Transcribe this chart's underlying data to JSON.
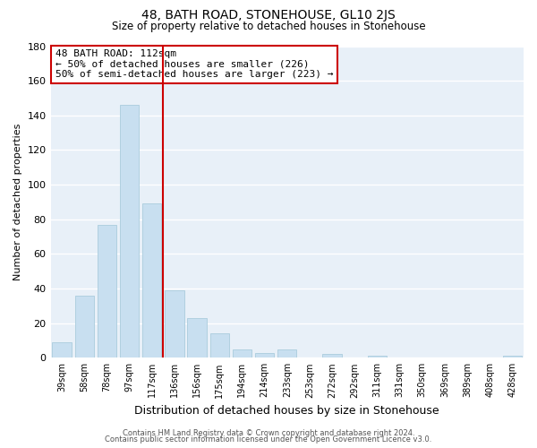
{
  "title": "48, BATH ROAD, STONEHOUSE, GL10 2JS",
  "subtitle": "Size of property relative to detached houses in Stonehouse",
  "xlabel": "Distribution of detached houses by size in Stonehouse",
  "ylabel": "Number of detached properties",
  "bar_labels": [
    "39sqm",
    "58sqm",
    "78sqm",
    "97sqm",
    "117sqm",
    "136sqm",
    "156sqm",
    "175sqm",
    "194sqm",
    "214sqm",
    "233sqm",
    "253sqm",
    "272sqm",
    "292sqm",
    "311sqm",
    "331sqm",
    "350sqm",
    "369sqm",
    "389sqm",
    "408sqm",
    "428sqm"
  ],
  "bar_values": [
    9,
    36,
    77,
    146,
    89,
    39,
    23,
    14,
    5,
    3,
    5,
    0,
    2,
    0,
    1,
    0,
    0,
    0,
    0,
    0,
    1
  ],
  "bar_color": "#c8dff0",
  "bar_edge_color": "#aaccdd",
  "vline_color": "#cc0000",
  "annotation_title": "48 BATH ROAD: 112sqm",
  "annotation_line1": "← 50% of detached houses are smaller (226)",
  "annotation_line2": "50% of semi-detached houses are larger (223) →",
  "annotation_box_color": "#ffffff",
  "annotation_box_edge": "#cc0000",
  "ylim": [
    0,
    180
  ],
  "yticks": [
    0,
    20,
    40,
    60,
    80,
    100,
    120,
    140,
    160,
    180
  ],
  "footer_line1": "Contains HM Land Registry data © Crown copyright and database right 2024.",
  "footer_line2": "Contains public sector information licensed under the Open Government Licence v3.0.",
  "plot_bg_color": "#e8f0f8",
  "fig_bg_color": "#ffffff",
  "grid_color": "#ffffff"
}
